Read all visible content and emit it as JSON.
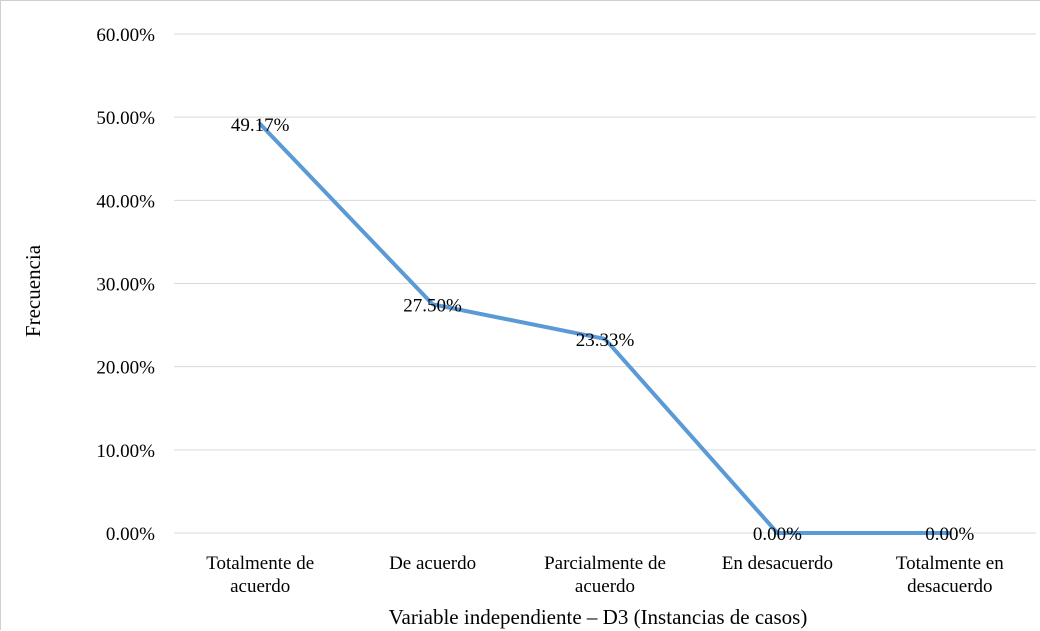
{
  "chart_data": {
    "type": "line",
    "categories": [
      [
        "Totalmente de",
        "acuerdo"
      ],
      [
        "De acuerdo"
      ],
      [
        "Parcialmente de",
        "acuerdo"
      ],
      [
        "En desacuerdo"
      ],
      [
        "Totalmente en",
        "desacuerdo"
      ]
    ],
    "values": [
      49.17,
      27.5,
      23.33,
      0.0,
      0.0
    ],
    "data_labels": [
      "49.17%",
      "27.50%",
      "23.33%",
      "0.00%",
      "0.00%"
    ],
    "y_ticks": [
      "0.00%",
      "10.00%",
      "20.00%",
      "30.00%",
      "40.00%",
      "50.00%",
      "60.00%"
    ],
    "ylim": [
      0,
      60
    ],
    "xlabel": "Variable independiente – D3 (Instancias de casos)",
    "ylabel": "Frecuencia",
    "grid": true,
    "legend": "none",
    "line_color": "#5b9bd5",
    "grid_color": "#d9d9d9"
  }
}
